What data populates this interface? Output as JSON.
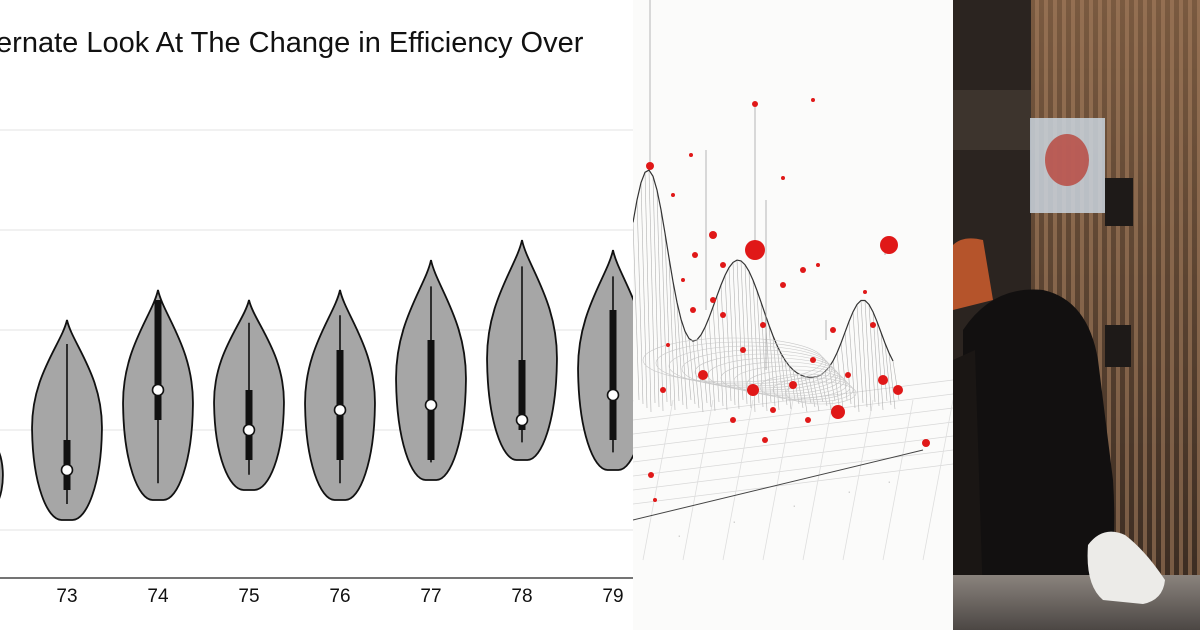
{
  "chart_data": {
    "type": "violin",
    "title": "ternate Look At The Change in Efficiency Over",
    "categories": [
      "73",
      "74",
      "75",
      "76",
      "77",
      "78",
      "79"
    ],
    "ylim": [
      0,
      5
    ],
    "grid": true,
    "series": [
      {
        "violins": [
          {
            "min": 0.6,
            "max": 2.6,
            "q1": 0.9,
            "q3": 1.4,
            "median": 1.1
          },
          {
            "min": 0.8,
            "max": 2.9,
            "q1": 1.6,
            "q3": 2.8,
            "median": 1.9
          },
          {
            "min": 0.9,
            "max": 2.8,
            "q1": 1.2,
            "q3": 1.9,
            "median": 1.5
          },
          {
            "min": 0.8,
            "max": 2.9,
            "q1": 1.2,
            "q3": 2.3,
            "median": 1.7
          },
          {
            "min": 1.0,
            "max": 3.2,
            "q1": 1.2,
            "q3": 2.4,
            "median": 1.75
          },
          {
            "min": 1.2,
            "max": 3.4,
            "q1": 1.5,
            "q3": 2.2,
            "median": 1.6
          },
          {
            "min": 1.1,
            "max": 3.3,
            "q1": 1.4,
            "q3": 2.7,
            "median": 1.85
          }
        ]
      }
    ]
  },
  "panels": {
    "middle_image": "3d-surface-scatter-illustration",
    "right_image": "cafe-photo-wooden-slat-wall"
  },
  "colors": {
    "violin_fill": "#a6a6a6",
    "grid": "#e3e3e3",
    "accent_red": "#e01818"
  }
}
